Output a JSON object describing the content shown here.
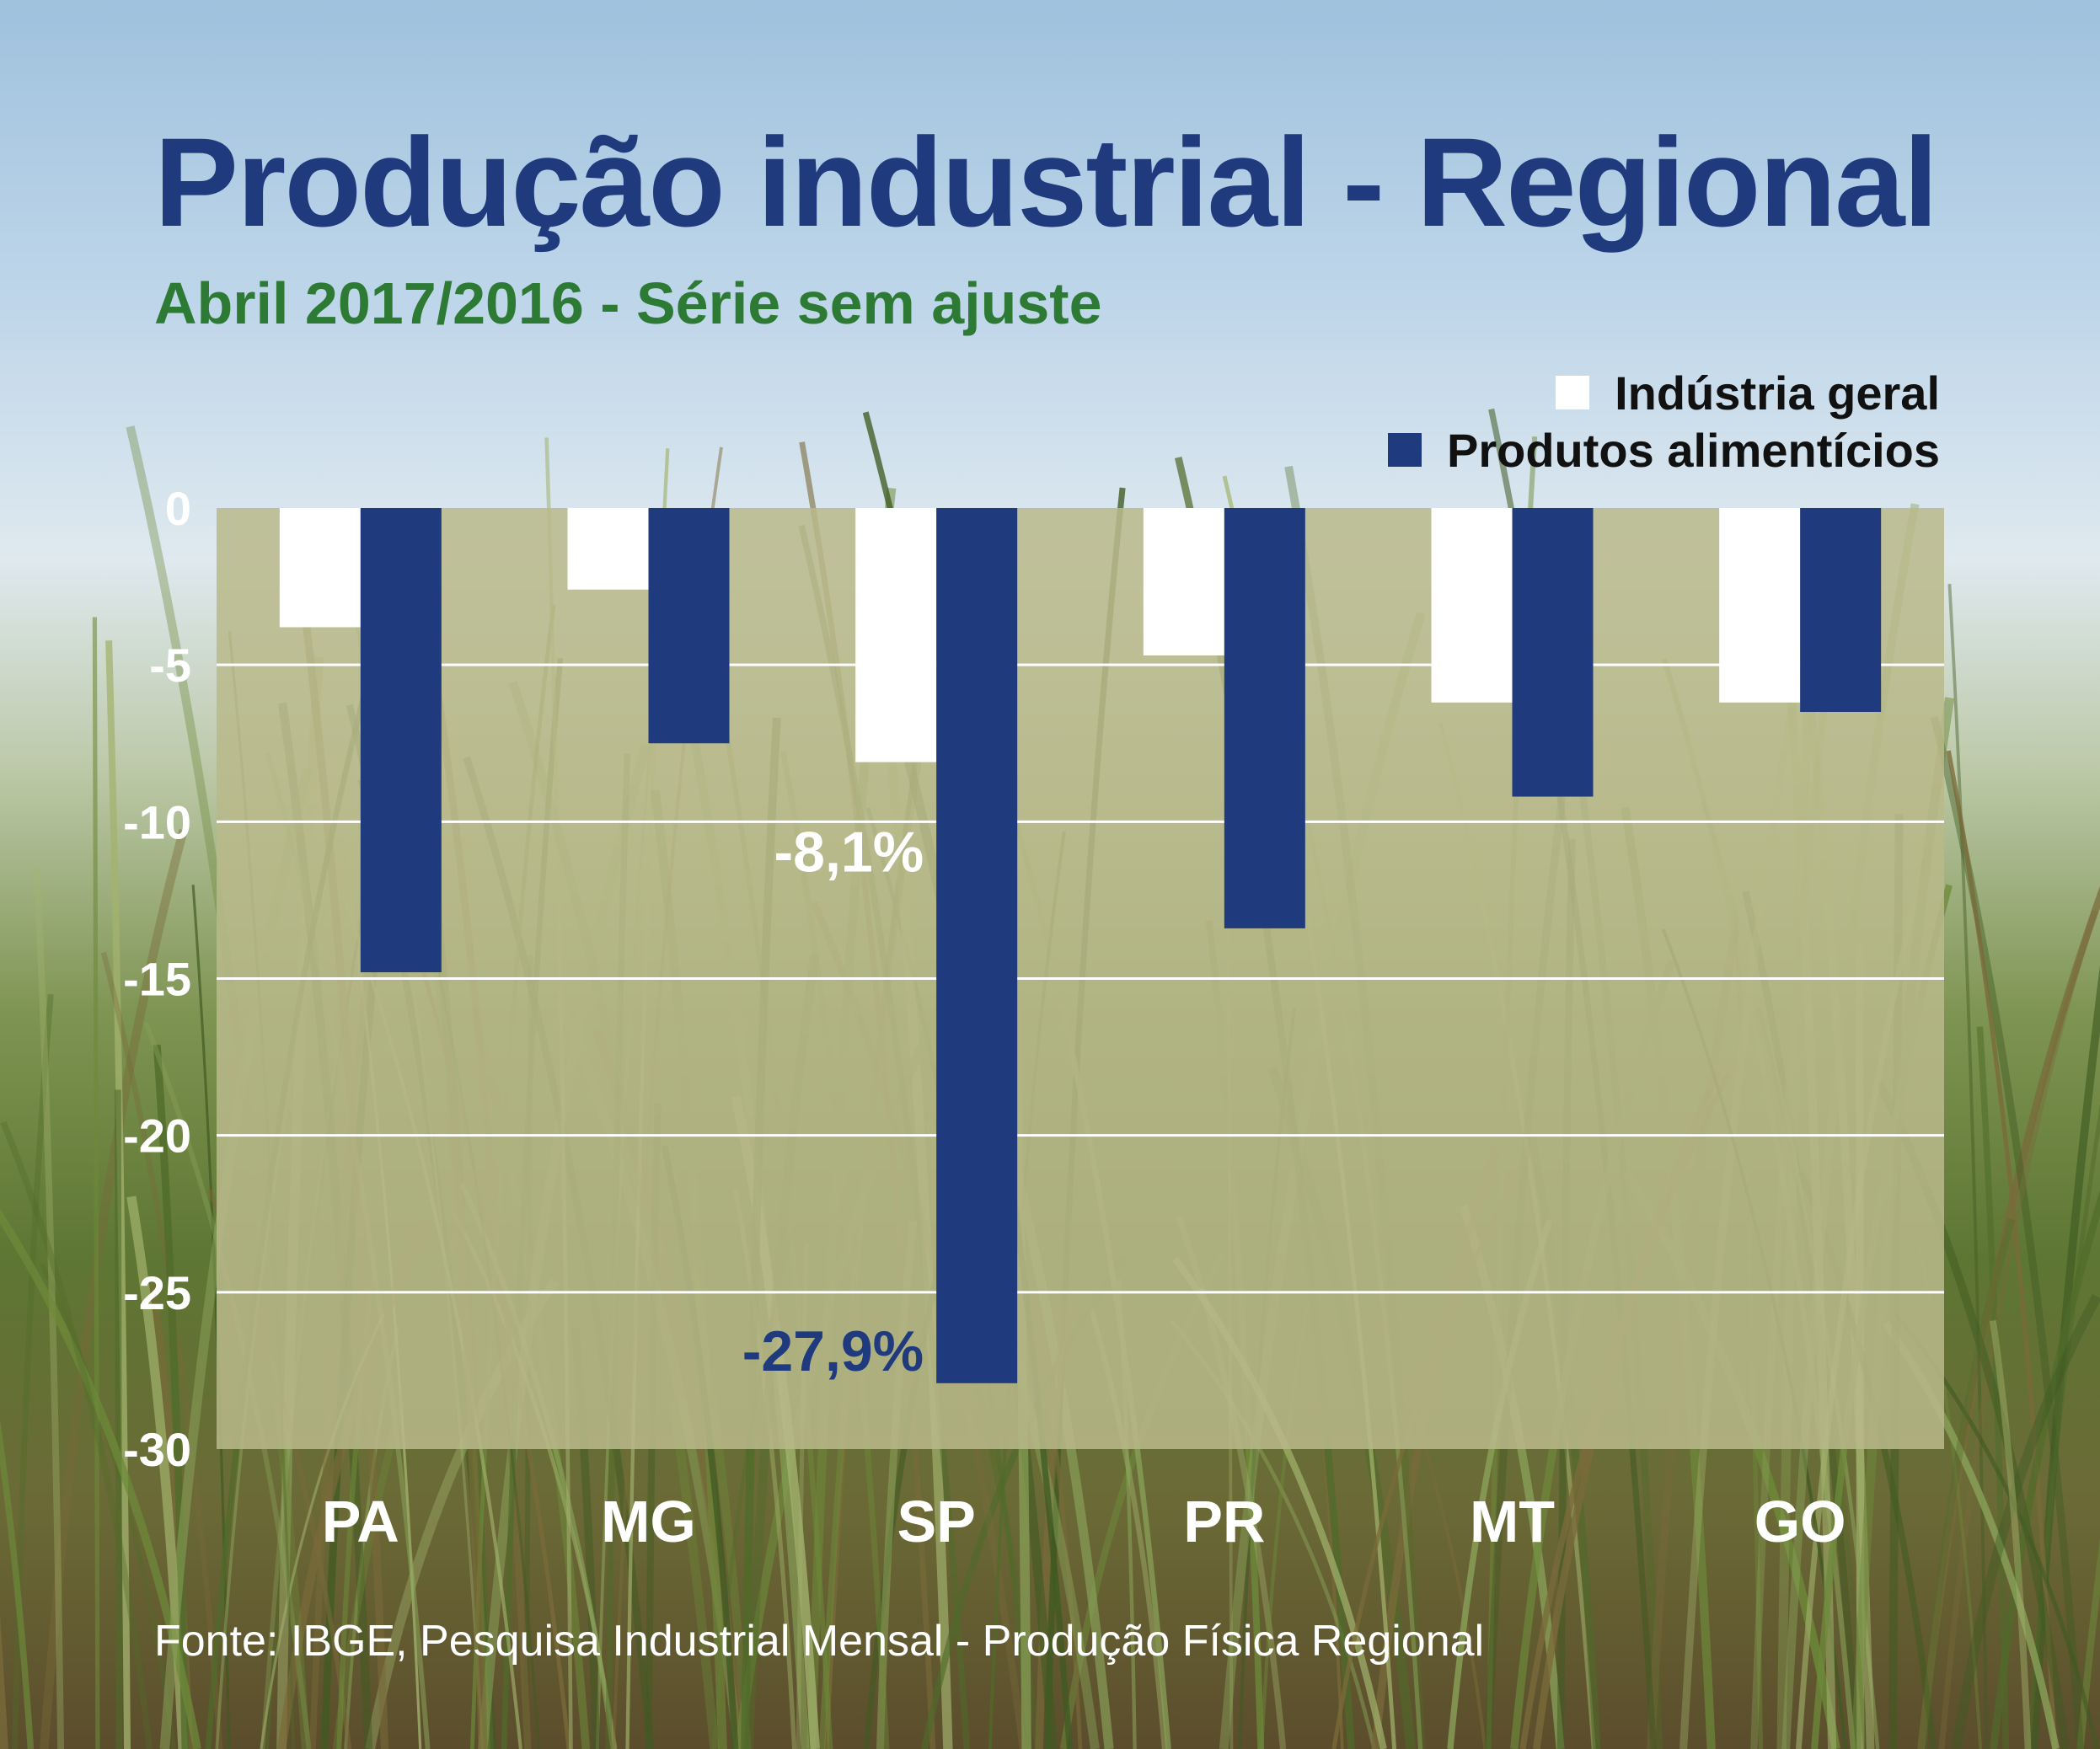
{
  "title": "Produção industrial - Regional",
  "subtitle": "Abril 2017/2016 - Série sem ajuste",
  "legend": [
    {
      "label": "Indústria geral",
      "color": "#ffffff"
    },
    {
      "label": "Produtos alimentícios",
      "color": "#1f3b7e"
    }
  ],
  "source": "Fonte: IBGE, Pesquisa Industrial Mensal - Produção Física Regional",
  "chart_data": {
    "type": "bar",
    "title": "Produção industrial - Regional",
    "subtitle": "Abril 2017/2016 - Série sem ajuste",
    "categories": [
      "PA",
      "MG",
      "SP",
      "PR",
      "MT",
      "GO"
    ],
    "series": [
      {
        "name": "Indústria geral",
        "color": "#ffffff",
        "values": [
          -3.8,
          -2.6,
          -8.1,
          -4.7,
          -6.2,
          -6.2
        ]
      },
      {
        "name": "Produtos alimentícios",
        "color": "#1f3b7e",
        "values": [
          -14.8,
          -7.5,
          -27.9,
          -13.4,
          -9.2,
          -6.5
        ]
      }
    ],
    "ylim": [
      -30,
      0
    ],
    "yticks": [
      0,
      -5,
      -10,
      -15,
      -20,
      -25,
      -30
    ],
    "ytick_labels": [
      "0",
      "-5",
      "-10",
      "-15",
      "-20",
      "-25",
      "-30"
    ],
    "grid": true,
    "legend_position": "top-right",
    "annotations": [
      {
        "text": "-8,1%",
        "category": "SP",
        "series": "Indústria geral",
        "color": "#ffffff"
      },
      {
        "text": "-27,9%",
        "category": "SP",
        "series": "Produtos alimentícios",
        "color": "#1f3b7e"
      }
    ],
    "plot_background": "#b9b98a"
  }
}
